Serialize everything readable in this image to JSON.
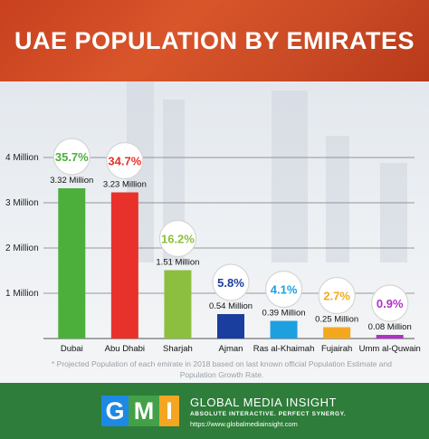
{
  "header": {
    "title": "UAE POPULATION BY EMIRATES"
  },
  "colors": {
    "header_bg": "#c8401f",
    "footer_bg": "#2e7d3a",
    "bars": [
      "#4caf3c",
      "#e8312a",
      "#8cbf3f",
      "#1a3e9e",
      "#1e9fe0",
      "#f4a81f",
      "#b030c8"
    ]
  },
  "chart_data": {
    "type": "bar",
    "title": "UAE POPULATION BY EMIRATES",
    "xlabel": "",
    "ylabel": "",
    "categories": [
      "Dubai",
      "Abu Dhabi",
      "Sharjah",
      "Ajman",
      "Ras al-Khaimah",
      "Fujairah",
      "Umm al-Quwain"
    ],
    "values": [
      3.32,
      3.23,
      1.51,
      0.54,
      0.39,
      0.25,
      0.08
    ],
    "value_labels": [
      "3.32 Million",
      "3.23 Million",
      "1.51 Million",
      "0.54 Million",
      "0.39 Million",
      "0.25 Million",
      "0.08 Million"
    ],
    "percent_labels": [
      "35.7%",
      "34.7%",
      "16.2%",
      "5.8%",
      "4.1%",
      "2.7%",
      "0.9%"
    ],
    "yticks": [
      1,
      2,
      3,
      4
    ],
    "ytick_labels": [
      "1 Million",
      "2 Million",
      "3 Million",
      "4 Million"
    ],
    "ylim": [
      0,
      4.3
    ],
    "grid": true
  },
  "footnote": "* Projected Population of each emirate in 2018 based on last known official Population Estimate and Population Growth Rate.",
  "footer": {
    "logo_letters": [
      "G",
      "M",
      "I"
    ],
    "brand_name": "GLOBAL MEDIA INSIGHT",
    "tagline": "ABSOLUTE INTERACTIVE. PERFECT SYNERGY.",
    "url": "https://www.globalmediainsight.com"
  }
}
